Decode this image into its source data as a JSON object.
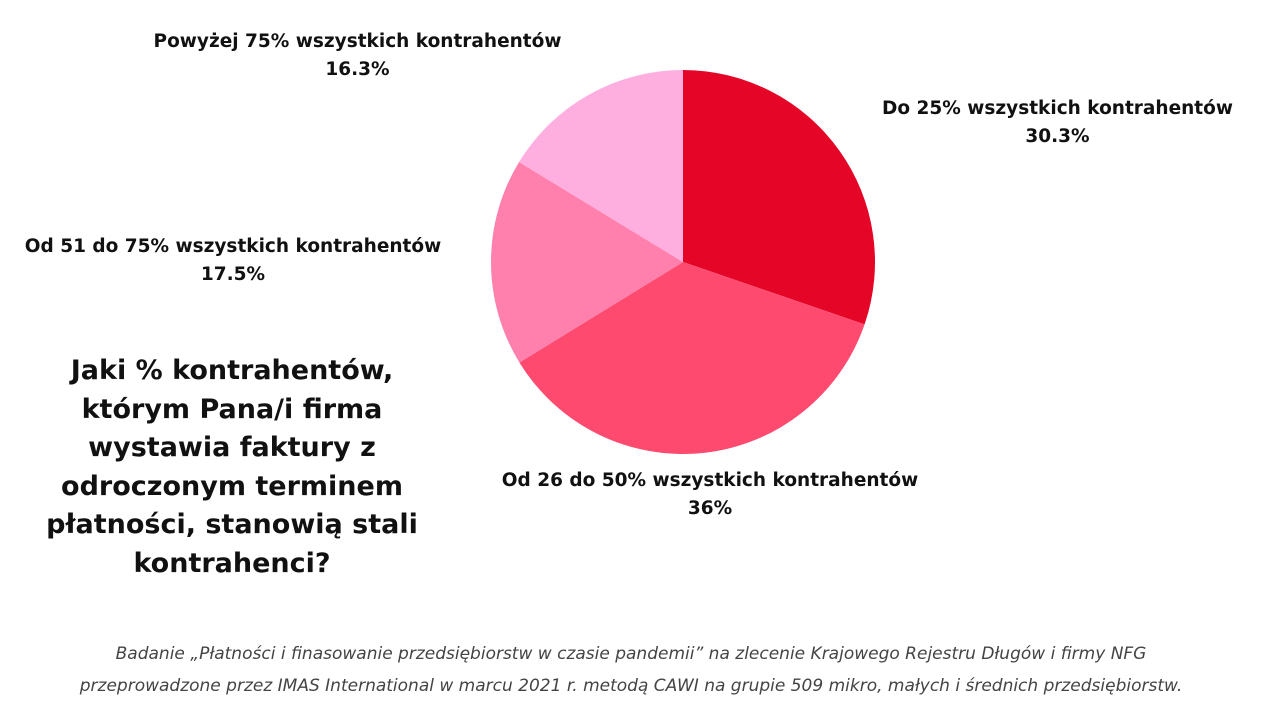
{
  "chart_data": {
    "type": "pie",
    "title": "Jaki % kontrahentów, którym Pana/i firma wystawia faktury z odroczonym terminem płatności, stanowią stali kontrahenci?",
    "start_angle_deg": 0,
    "direction": "clockwise",
    "slices": [
      {
        "label": "Do 25% wszystkich kontrahentów",
        "value": 30.3,
        "value_text": "30.3%",
        "color": "#E50527"
      },
      {
        "label": "Od 26 do 50% wszystkich kontrahentów",
        "value": 36,
        "value_text": "36%",
        "color": "#FF4A70"
      },
      {
        "label": "Od 51 do 75% wszystkich kontrahentów",
        "value": 17.5,
        "value_text": "17.5%",
        "color": "#FF80AD"
      },
      {
        "label": "Powyżej 75% wszystkich kontrahentów",
        "value": 16.3,
        "value_text": "16.3%",
        "color": "#FFAEE0"
      }
    ]
  },
  "question": {
    "lines": [
      "Jaki % kontrahentów,",
      "którym Pana/i firma",
      "wystawia faktury z",
      "odroczonym terminem",
      "płatności, stanowią stali",
      "kontrahenci?"
    ]
  },
  "footnote": {
    "line1": "Badanie „Płatności i finasowanie przedsiębiorstw w czasie pandemii” na zlecenie Krajowego Rejestru Długów i firmy NFG",
    "line2": "przeprowadzone przez IMAS International w marcu 2021 r. metodą CAWI na grupie 509 mikro, małych i średnich przedsiębiorstw."
  }
}
